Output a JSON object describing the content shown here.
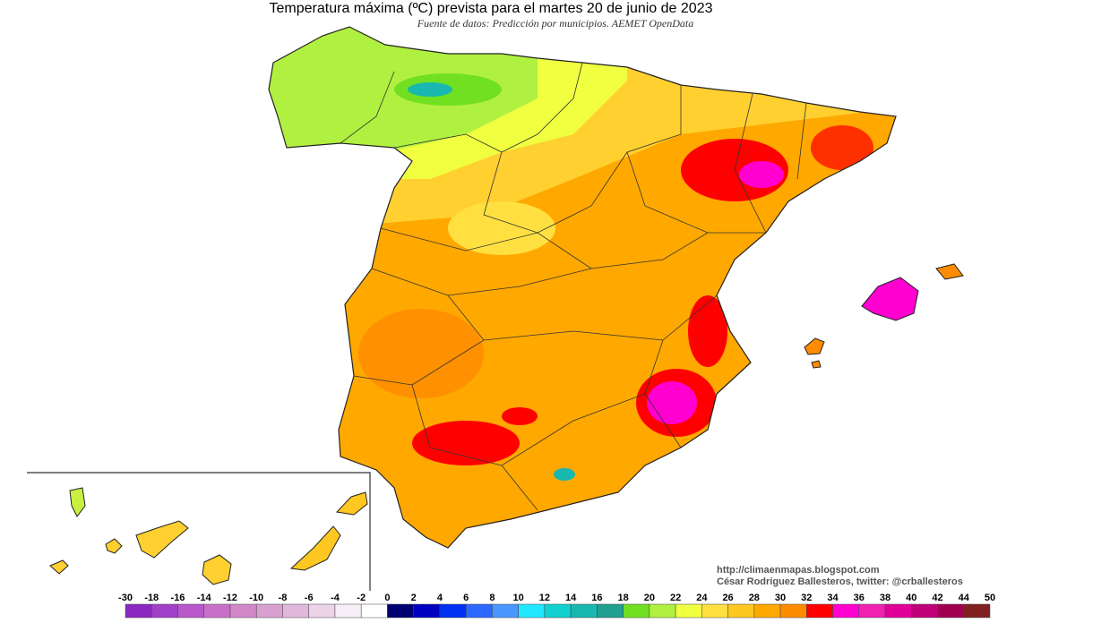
{
  "header": {
    "title": "Temperatura máxima (ºC) prevista para el martes 20 de junio de 2023",
    "subtitle": "Fuente de datos: Predicción por municipios. AEMET OpenData"
  },
  "credits": [
    "http://climaenmapas.blogspot.com",
    "César Rodríguez Ballesteros, twitter: @crballesteros"
  ],
  "legend": {
    "ticks": [
      -30,
      -18,
      -16,
      -14,
      -12,
      -10,
      -8,
      -6,
      -4,
      -2,
      0,
      2,
      4,
      6,
      8,
      10,
      12,
      14,
      16,
      18,
      20,
      22,
      24,
      26,
      28,
      30,
      32,
      34,
      36,
      38,
      40,
      42,
      44,
      50
    ],
    "colors": [
      "#8a28c0",
      "#a040c8",
      "#b858cc",
      "#c870c8",
      "#d088c8",
      "#d8a0d0",
      "#e0b8dc",
      "#ecd4e8",
      "#f6eef6",
      "#ffffff",
      "#000070",
      "#0000c0",
      "#0030f0",
      "#2c68ff",
      "#4898ff",
      "#20e8ff",
      "#10d0d0",
      "#18b8b0",
      "#20a090",
      "#70e020",
      "#b0f040",
      "#f0ff40",
      "#ffe040",
      "#ffc820",
      "#ffa800",
      "#ff8c00",
      "#ff0000",
      "#ff00d0",
      "#f020b0",
      "#e00098",
      "#c00078",
      "#a00050",
      "#802020"
    ]
  }
}
